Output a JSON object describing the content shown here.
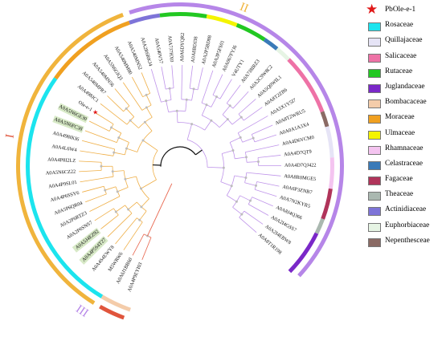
{
  "colors": {
    "clade_I": "#e0553c",
    "clade_II": "#f0b43c",
    "clade_III": "#b686e8",
    "branch_I": "#e8664e",
    "branch_II": "#efae45",
    "branch_III": "#bf94ea",
    "stem": "#111111",
    "node": "#bcbcbc",
    "highlight": "#d7e9c6",
    "star": "#e01818"
  },
  "legend": [
    {
      "label": "PbOle-e-1",
      "color": "#e01818",
      "icon": "star-icon"
    },
    {
      "label": "Rosaceae",
      "color": "#1ce4ee"
    },
    {
      "label": "Quillajaceae",
      "color": "#e6e4f6"
    },
    {
      "label": "Salicaceae",
      "color": "#ee72a6"
    },
    {
      "label": "Rutaceae",
      "color": "#22c822"
    },
    {
      "label": "Juglandaceae",
      "color": "#7a28c8"
    },
    {
      "label": "Bombacaceae",
      "color": "#f4ccaa"
    },
    {
      "label": "Moraceae",
      "color": "#f0a020"
    },
    {
      "label": "Ulmaceae",
      "color": "#f4f400"
    },
    {
      "label": "Rhamnaceae",
      "color": "#f4c4f0"
    },
    {
      "label": "Celastraceae",
      "color": "#3a7ab8"
    },
    {
      "label": "Fagaceae",
      "color": "#b0345a"
    },
    {
      "label": "Theaceae",
      "color": "#aab8b0"
    },
    {
      "label": "Actinidiaceae",
      "color": "#7e74d8"
    },
    {
      "label": "Euphorbiaceae",
      "color": "#e6f4e4"
    },
    {
      "label": "Nepenthesceae",
      "color": "#8a6a64"
    }
  ],
  "clades": [
    {
      "numeral": "I",
      "group": "I"
    },
    {
      "numeral": "II",
      "group": "II"
    },
    {
      "numeral": "III",
      "group": "III"
    }
  ],
  "leaves": [
    {
      "label": "A0A4P9EYI03",
      "group": "I",
      "family": "Bombacaceae"
    },
    {
      "label": "A0A6J1BB60",
      "group": "I",
      "family": "Bombacaceae"
    },
    {
      "label": "M5WRW6",
      "group": "II",
      "family": "Rosaceae"
    },
    {
      "label": "A0A4S4EWY8",
      "group": "II",
      "family": "Rosaceae"
    },
    {
      "label": "A0A4P5S4T27",
      "group": "II",
      "family": "Rosaceae",
      "highlight": true
    },
    {
      "label": "A0A5J4EZ92",
      "group": "II",
      "family": "Rosaceae",
      "highlight": true
    },
    {
      "label": "A0A2P6SNS7",
      "group": "II",
      "family": "Rosaceae"
    },
    {
      "label": "A0A2P6RTZ3",
      "group": "II",
      "family": "Rosaceae"
    },
    {
      "label": "A0A5P6QR04",
      "group": "II",
      "family": "Rosaceae"
    },
    {
      "label": "A0A4P6SSY6",
      "group": "II",
      "family": "Rosaceae"
    },
    {
      "label": "A0A4P9SL01",
      "group": "II",
      "family": "Rosaceae"
    },
    {
      "label": "A0A5N6CZ22",
      "group": "II",
      "family": "Rosaceae"
    },
    {
      "label": "A0A4P8I2LZ",
      "group": "II",
      "family": "Rosaceae"
    },
    {
      "label": "A0A4L6W4",
      "group": "II",
      "family": "Rosaceae"
    },
    {
      "label": "A0A498IKI6",
      "group": "II",
      "family": "Rosaceae"
    },
    {
      "label": "A0A5N6FC38",
      "group": "II",
      "family": "Rosaceae",
      "highlight": true
    },
    {
      "label": "A0A5N6GE30",
      "group": "II",
      "family": "Rosaceae",
      "highlight": true
    },
    {
      "label": "Ole-e-1",
      "group": "II",
      "family": "Rosaceae",
      "star": true
    },
    {
      "label": "A0A498JC1",
      "group": "II",
      "family": "Moraceae"
    },
    {
      "label": "A0A540MPR7",
      "group": "II",
      "family": "Moraceae"
    },
    {
      "label": "A0A540MN56",
      "group": "II",
      "family": "Moraceae"
    },
    {
      "label": "A0A5N6GIQ3",
      "group": "II",
      "family": "Moraceae"
    },
    {
      "label": "A0A540MM80",
      "group": "II",
      "family": "Moraceae"
    },
    {
      "label": "A0A540MN52",
      "group": "II",
      "family": "Moraceae"
    },
    {
      "label": "A0A2R6RKJ4",
      "group": "III",
      "family": "Actinidiaceae"
    },
    {
      "label": "A0A540V57",
      "group": "III",
      "family": "Actinidiaceae"
    },
    {
      "label": "A0A7J7HX0",
      "group": "III",
      "family": "Rutaceae"
    },
    {
      "label": "A0A6DYQR2",
      "group": "III",
      "family": "Rutaceae"
    },
    {
      "label": "A0A8BDJ38",
      "group": "III",
      "family": "Rutaceae"
    },
    {
      "label": "A0A2P5BD88",
      "group": "III",
      "family": "Ulmaceae"
    },
    {
      "label": "A0A2P5FS01",
      "group": "III",
      "family": "Ulmaceae"
    },
    {
      "label": "A0A067FYJ6",
      "group": "III",
      "family": "Rutaceae"
    },
    {
      "label": "V4UTY1",
      "group": "III",
      "family": "Rutaceae"
    },
    {
      "label": "A0A7J8IRZ3",
      "group": "III",
      "family": "Celastraceae"
    },
    {
      "label": "A0A2C9W8C2",
      "group": "III",
      "family": "Euphorbiaceae"
    },
    {
      "label": "A0A5Q0WIL1",
      "group": "III",
      "family": "Salicaceae"
    },
    {
      "label": "A0A8T2ZB6",
      "group": "III",
      "family": "Salicaceae"
    },
    {
      "label": "A0A5X1Y5I7",
      "group": "III",
      "family": "Salicaceae"
    },
    {
      "label": "A0A8T2WRU5",
      "group": "III",
      "family": "Salicaceae"
    },
    {
      "label": "A0A0A1A3X4",
      "group": "III",
      "family": "Nepenthesceae"
    },
    {
      "label": "A0A4D6VCM0",
      "group": "III",
      "family": "Quillajaceae"
    },
    {
      "label": "A0A4D7QT9",
      "group": "III",
      "family": "Quillajaceae"
    },
    {
      "label": "A0A4D7QJ422",
      "group": "III",
      "family": "Rhamnaceae"
    },
    {
      "label": "A0A8R0MGE5",
      "group": "III",
      "family": "Rhamnaceae"
    },
    {
      "label": "A0A6P3ZNB7",
      "group": "III",
      "family": "Fagaceae"
    },
    {
      "label": "A0A7N2KYR5",
      "group": "III",
      "family": "Fagaceae"
    },
    {
      "label": "A0A8J4Q366",
      "group": "III",
      "family": "Theaceae"
    },
    {
      "label": "A0A2I4GSS7",
      "group": "III",
      "family": "Juglandaceae"
    },
    {
      "label": "A0A2I4EBW8",
      "group": "III",
      "family": "Juglandaceae"
    },
    {
      "label": "A0A8T1R198",
      "group": "III",
      "family": "Juglandaceae"
    }
  ]
}
